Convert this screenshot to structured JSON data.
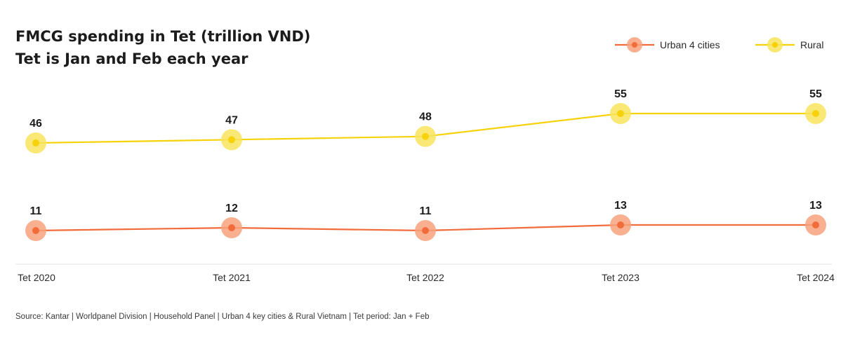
{
  "header": {
    "title": "FMCG spending in Tet (trillion VND)",
    "subtitle": "Tet is Jan and Feb each year"
  },
  "footer": {
    "source": "Source: Kantar | Worldpanel Division | Household Panel | Urban 4 key cities & Rural Vietnam | Tet period: Jan + Feb"
  },
  "chart_data": {
    "type": "line",
    "title": "FMCG spending in Tet (trillion VND)",
    "subtitle": "Tet is Jan and Feb each year",
    "categories": [
      "Tet 2020",
      "Tet 2021",
      "Tet 2022",
      "Tet 2023",
      "Tet 2024"
    ],
    "series": [
      {
        "name": "Urban 4 cities",
        "color": "#f26b3a",
        "halo": "#f7a27c",
        "values": [
          11,
          12,
          11,
          13,
          13
        ]
      },
      {
        "name": "Rural",
        "color": "#f5d20a",
        "halo": "#f8e45e",
        "values": [
          46,
          47,
          48,
          55,
          55
        ]
      }
    ],
    "xlabel": "",
    "ylabel": "",
    "grid": false,
    "legend": "top-right",
    "data_labels": true
  }
}
